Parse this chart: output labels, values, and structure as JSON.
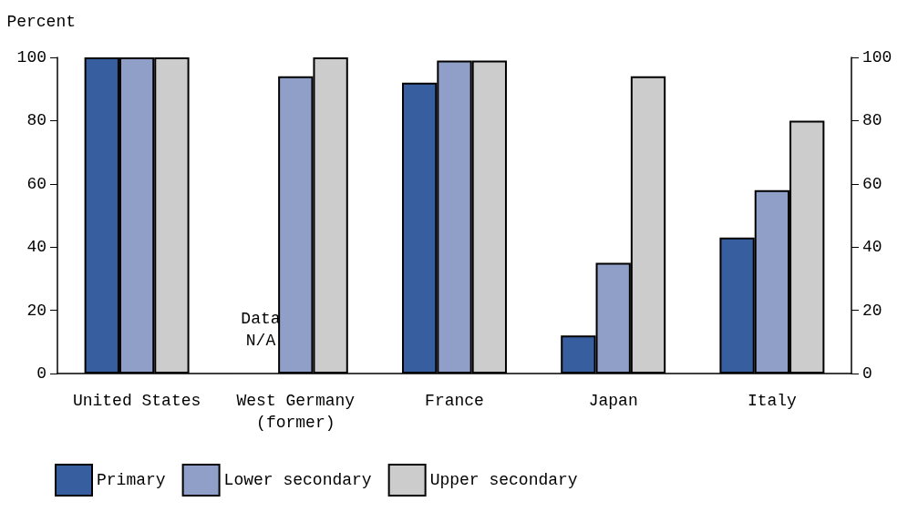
{
  "chart_data": {
    "type": "bar",
    "ylabel": "Percent",
    "categories": [
      "United States",
      "West Germany\n(former)",
      "France",
      "Japan",
      "Italy"
    ],
    "series": [
      {
        "name": "Primary",
        "color": "#375f9f",
        "values": [
          100,
          null,
          92,
          12,
          43
        ]
      },
      {
        "name": "Lower secondary",
        "color": "#8f9fc8",
        "values": [
          100,
          94,
          99,
          35,
          58
        ]
      },
      {
        "name": "Upper secondary",
        "color": "#cccccc",
        "values": [
          100,
          100,
          99,
          94,
          80
        ]
      }
    ],
    "ylim": [
      0,
      100
    ],
    "yticks": [
      0,
      20,
      40,
      60,
      80,
      100
    ],
    "y2lim": [
      0,
      100
    ],
    "y2ticks": [
      0,
      20,
      40,
      60,
      80,
      100
    ],
    "annotations": [
      "Data\nN/A"
    ],
    "grid": false,
    "legend": "bottom"
  }
}
